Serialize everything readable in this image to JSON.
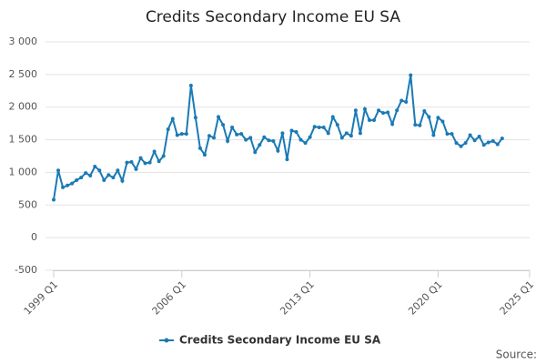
{
  "chart_data": {
    "type": "line",
    "title": "Credits Secondary Income EU SA",
    "categories": [
      "1999 Q1",
      null,
      null,
      null,
      null,
      null,
      null,
      null,
      null,
      null,
      null,
      null,
      null,
      null,
      null,
      null,
      null,
      null,
      null,
      null,
      null,
      null,
      null,
      null,
      null,
      null,
      null,
      null,
      "2006 Q1",
      null,
      null,
      null,
      null,
      null,
      null,
      null,
      null,
      null,
      null,
      null,
      null,
      null,
      null,
      null,
      null,
      null,
      null,
      null,
      null,
      null,
      null,
      null,
      null,
      null,
      null,
      null,
      "2013 Q1",
      null,
      null,
      null,
      null,
      null,
      null,
      null,
      null,
      null,
      null,
      null,
      null,
      null,
      null,
      null,
      null,
      null,
      null,
      null,
      null,
      null,
      null,
      null,
      null,
      null,
      null,
      null,
      "2020 Q1",
      null,
      null,
      null,
      null,
      null,
      null,
      null,
      null,
      null,
      null,
      null,
      null,
      null,
      null,
      null,
      null,
      null,
      null,
      null,
      "2025 Q1"
    ],
    "series": [
      {
        "name": "Credits Secondary Income EU SA",
        "color": "#1a7ab5",
        "values": [
          580,
          1030,
          770,
          800,
          830,
          880,
          920,
          990,
          950,
          1090,
          1030,
          880,
          960,
          920,
          1030,
          870,
          1150,
          1160,
          1050,
          1220,
          1140,
          1150,
          1320,
          1170,
          1250,
          1660,
          1820,
          1570,
          1590,
          1590,
          2330,
          1840,
          1370,
          1270,
          1560,
          1530,
          1850,
          1730,
          1480,
          1690,
          1580,
          1590,
          1500,
          1530,
          1310,
          1420,
          1540,
          1490,
          1480,
          1330,
          1600,
          1200,
          1640,
          1620,
          1500,
          1450,
          1540,
          1700,
          1690,
          1690,
          1600,
          1850,
          1730,
          1530,
          1600,
          1560,
          1950,
          1600,
          1970,
          1800,
          1800,
          1950,
          1910,
          1920,
          1740,
          1950,
          2100,
          2080,
          2490,
          1730,
          1720,
          1940,
          1850,
          1570,
          1840,
          1780,
          1590,
          1590,
          1450,
          1400,
          1450,
          1570,
          1490,
          1550,
          1420,
          1460,
          1480,
          1430,
          1520,
          null,
          null,
          null,
          null,
          null,
          null
        ]
      }
    ],
    "ylim": [
      -500,
      3000
    ],
    "yticks": [
      -500,
      0,
      500,
      {
        "value": 1000,
        "label": "1 000"
      },
      {
        "value": 1500,
        "label": "1 500"
      },
      {
        "value": 2000,
        "label": "2 000"
      },
      {
        "value": 2500,
        "label": "2 500"
      },
      {
        "value": 3000,
        "label": "3 000"
      }
    ],
    "grid": true,
    "legend": "bottom",
    "source": "Source:"
  }
}
